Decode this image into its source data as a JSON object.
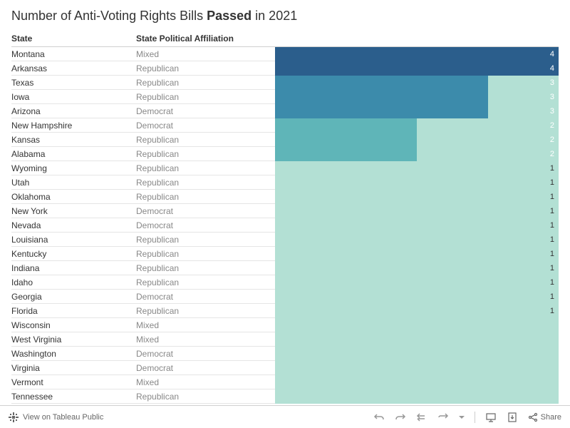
{
  "title_prefix": "Number of Anti-Voting Rights Bills ",
  "title_bold": "Passed",
  "title_suffix": " in 2021",
  "columns": {
    "state": "State",
    "affiliation": "State Political Affiliation"
  },
  "chart": {
    "type": "bar",
    "max_value": 4,
    "bg_color": "#b3e0d4",
    "colors": {
      "4": "#2b5e8c",
      "3": "#3c8bab",
      "2": "#5fb5b8",
      "1": "#b3e0d4",
      "0": "#b3e0d4"
    },
    "value_text_color": "#ffffff"
  },
  "rows": [
    {
      "state": "Montana",
      "affiliation": "Mixed",
      "value": 4
    },
    {
      "state": "Arkansas",
      "affiliation": "Republican",
      "value": 4
    },
    {
      "state": "Texas",
      "affiliation": "Republican",
      "value": 3
    },
    {
      "state": "Iowa",
      "affiliation": "Republican",
      "value": 3
    },
    {
      "state": "Arizona",
      "affiliation": "Democrat",
      "value": 3
    },
    {
      "state": "New Hampshire",
      "affiliation": "Democrat",
      "value": 2
    },
    {
      "state": "Kansas",
      "affiliation": "Republican",
      "value": 2
    },
    {
      "state": "Alabama",
      "affiliation": "Republican",
      "value": 2
    },
    {
      "state": "Wyoming",
      "affiliation": "Republican",
      "value": 1
    },
    {
      "state": "Utah",
      "affiliation": "Republican",
      "value": 1
    },
    {
      "state": "Oklahoma",
      "affiliation": "Republican",
      "value": 1
    },
    {
      "state": "New York",
      "affiliation": "Democrat",
      "value": 1
    },
    {
      "state": "Nevada",
      "affiliation": "Democrat",
      "value": 1
    },
    {
      "state": "Louisiana",
      "affiliation": "Republican",
      "value": 1
    },
    {
      "state": "Kentucky",
      "affiliation": "Republican",
      "value": 1
    },
    {
      "state": "Indiana",
      "affiliation": "Republican",
      "value": 1
    },
    {
      "state": "Idaho",
      "affiliation": "Republican",
      "value": 1
    },
    {
      "state": "Georgia",
      "affiliation": "Democrat",
      "value": 1
    },
    {
      "state": "Florida",
      "affiliation": "Republican",
      "value": 1
    },
    {
      "state": "Wisconsin",
      "affiliation": "Mixed",
      "value": 0
    },
    {
      "state": "West Virginia",
      "affiliation": "Mixed",
      "value": 0
    },
    {
      "state": "Washington",
      "affiliation": "Democrat",
      "value": 0
    },
    {
      "state": "Virginia",
      "affiliation": "Democrat",
      "value": 0
    },
    {
      "state": "Vermont",
      "affiliation": "Mixed",
      "value": 0
    },
    {
      "state": "Tennessee",
      "affiliation": "Republican",
      "value": 0
    }
  ],
  "toolbar": {
    "view_label": "View on Tableau Public",
    "share_label": "Share"
  }
}
